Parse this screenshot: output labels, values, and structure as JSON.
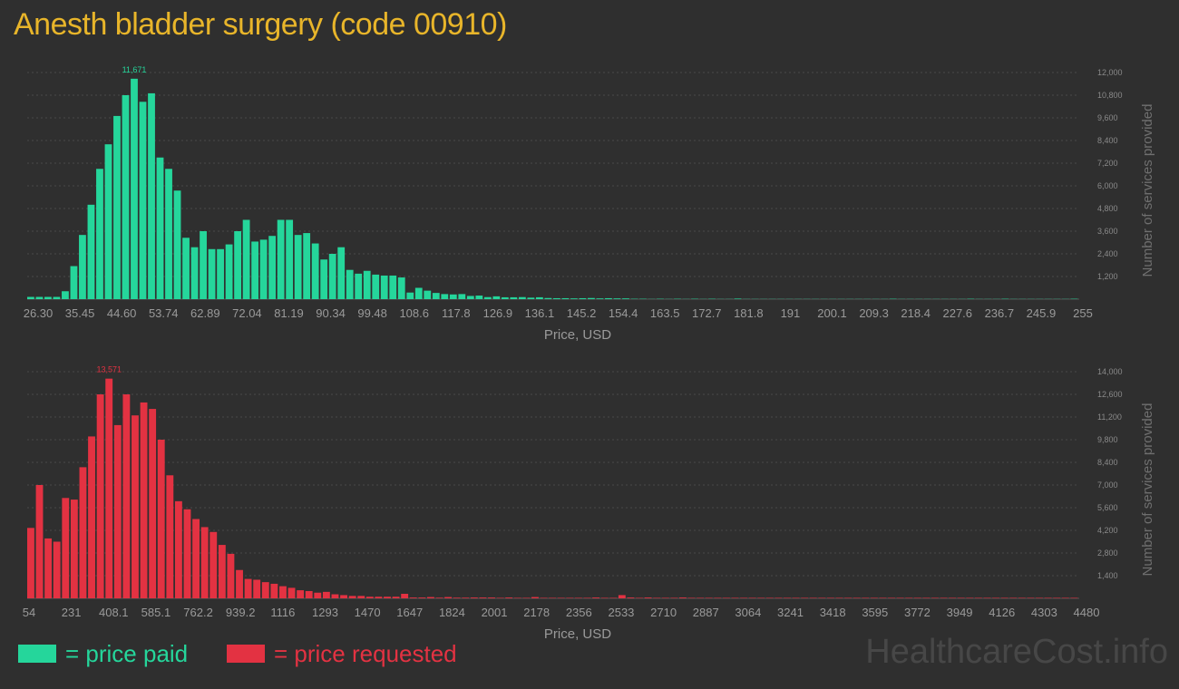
{
  "title": "Anesth bladder surgery (code 00910)",
  "legend": {
    "paid": "= price paid",
    "requested": "= price requested"
  },
  "watermark": "HealthcareCost.info",
  "colors": {
    "paid": "#25d69b",
    "requested": "#e33242",
    "title": "#e8b52a",
    "background": "#2f2f2f"
  },
  "chart_data": [
    {
      "type": "bar",
      "series": [
        {
          "name": "price paid",
          "color": "#25d69b",
          "values": [
            120,
            120,
            120,
            120,
            420,
            1750,
            3400,
            5000,
            6900,
            8200,
            9700,
            10800,
            11671,
            10450,
            10900,
            7500,
            6900,
            5750,
            3250,
            2750,
            3600,
            2650,
            2650,
            2900,
            3600,
            4200,
            3050,
            3150,
            3350,
            4200,
            4200,
            3400,
            3500,
            2950,
            2100,
            2400,
            2750,
            1550,
            1350,
            1500,
            1300,
            1250,
            1250,
            1150,
            350,
            600,
            450,
            330,
            270,
            250,
            270,
            170,
            190,
            110,
            150,
            100,
            100,
            110,
            80,
            100,
            60,
            50,
            50,
            40,
            50,
            60,
            40,
            50,
            40,
            40,
            20,
            20,
            10,
            20,
            10,
            20,
            10,
            20,
            10,
            20,
            10,
            10,
            30,
            10,
            10,
            10,
            10,
            10,
            10,
            10,
            10,
            10,
            10,
            10,
            10,
            10,
            10,
            10,
            10,
            10,
            20,
            10,
            10,
            10,
            10,
            10,
            10,
            10,
            10,
            20,
            10,
            10,
            10,
            20,
            10,
            10,
            10,
            10,
            10,
            10,
            10,
            20
          ]
        }
      ],
      "peak_label": "11,671",
      "x_ticks": [
        "26.30",
        "35.45",
        "44.60",
        "53.74",
        "62.89",
        "72.04",
        "81.19",
        "90.34",
        "99.48",
        "108.6",
        "117.8",
        "126.9",
        "136.1",
        "145.2",
        "154.4",
        "163.5",
        "172.7",
        "181.8",
        "191",
        "200.1",
        "209.3",
        "218.4",
        "227.6",
        "236.7",
        "245.9",
        "255"
      ],
      "y_ticks": [
        "1,200",
        "2,400",
        "3,600",
        "4,800",
        "6,000",
        "7,200",
        "8,400",
        "9,600",
        "10,800",
        "12,000"
      ],
      "ylim": [
        0,
        12000
      ],
      "xlabel": "Price, USD",
      "ylabel": "Number of services provided",
      "grid": true
    },
    {
      "type": "bar",
      "series": [
        {
          "name": "price requested",
          "color": "#e33242",
          "values": [
            4350,
            7000,
            3700,
            3500,
            6200,
            6100,
            8100,
            10000,
            12600,
            13571,
            10700,
            12600,
            11300,
            12100,
            11700,
            9800,
            7600,
            6000,
            5500,
            4900,
            4400,
            4100,
            3300,
            2750,
            1750,
            1200,
            1150,
            1000,
            900,
            750,
            650,
            500,
            450,
            350,
            400,
            250,
            200,
            150,
            150,
            100,
            100,
            100,
            100,
            280,
            50,
            50,
            80,
            40,
            80,
            40,
            40,
            50,
            50,
            50,
            30,
            50,
            30,
            30,
            80,
            30,
            30,
            30,
            30,
            30,
            30,
            50,
            30,
            30,
            200,
            50,
            30,
            50,
            30,
            30,
            30,
            50,
            30,
            30,
            30,
            30,
            30,
            30,
            30,
            30,
            30,
            30,
            30,
            30,
            30,
            30,
            30,
            30,
            30,
            30,
            30,
            30,
            30,
            30,
            30,
            30,
            30,
            30,
            30,
            30,
            30,
            30,
            30,
            30,
            30,
            30,
            30,
            30,
            30,
            30,
            30,
            30,
            30,
            30,
            30,
            30,
            30
          ]
        }
      ],
      "peak_label": "13,571",
      "x_ticks": [
        "54",
        "231",
        "408.1",
        "585.1",
        "762.2",
        "939.2",
        "1116",
        "1293",
        "1470",
        "1647",
        "1824",
        "2001",
        "2178",
        "2356",
        "2533",
        "2710",
        "2887",
        "3064",
        "3241",
        "3418",
        "3595",
        "3772",
        "3949",
        "4126",
        "4303",
        "4480"
      ],
      "y_ticks": [
        "1,400",
        "2,800",
        "4,200",
        "5,600",
        "7,000",
        "8,400",
        "9,800",
        "11,200",
        "12,600",
        "14,000"
      ],
      "ylim": [
        0,
        14000
      ],
      "xlabel": "Price, USD",
      "ylabel": "Number of services provided",
      "grid": true
    }
  ]
}
